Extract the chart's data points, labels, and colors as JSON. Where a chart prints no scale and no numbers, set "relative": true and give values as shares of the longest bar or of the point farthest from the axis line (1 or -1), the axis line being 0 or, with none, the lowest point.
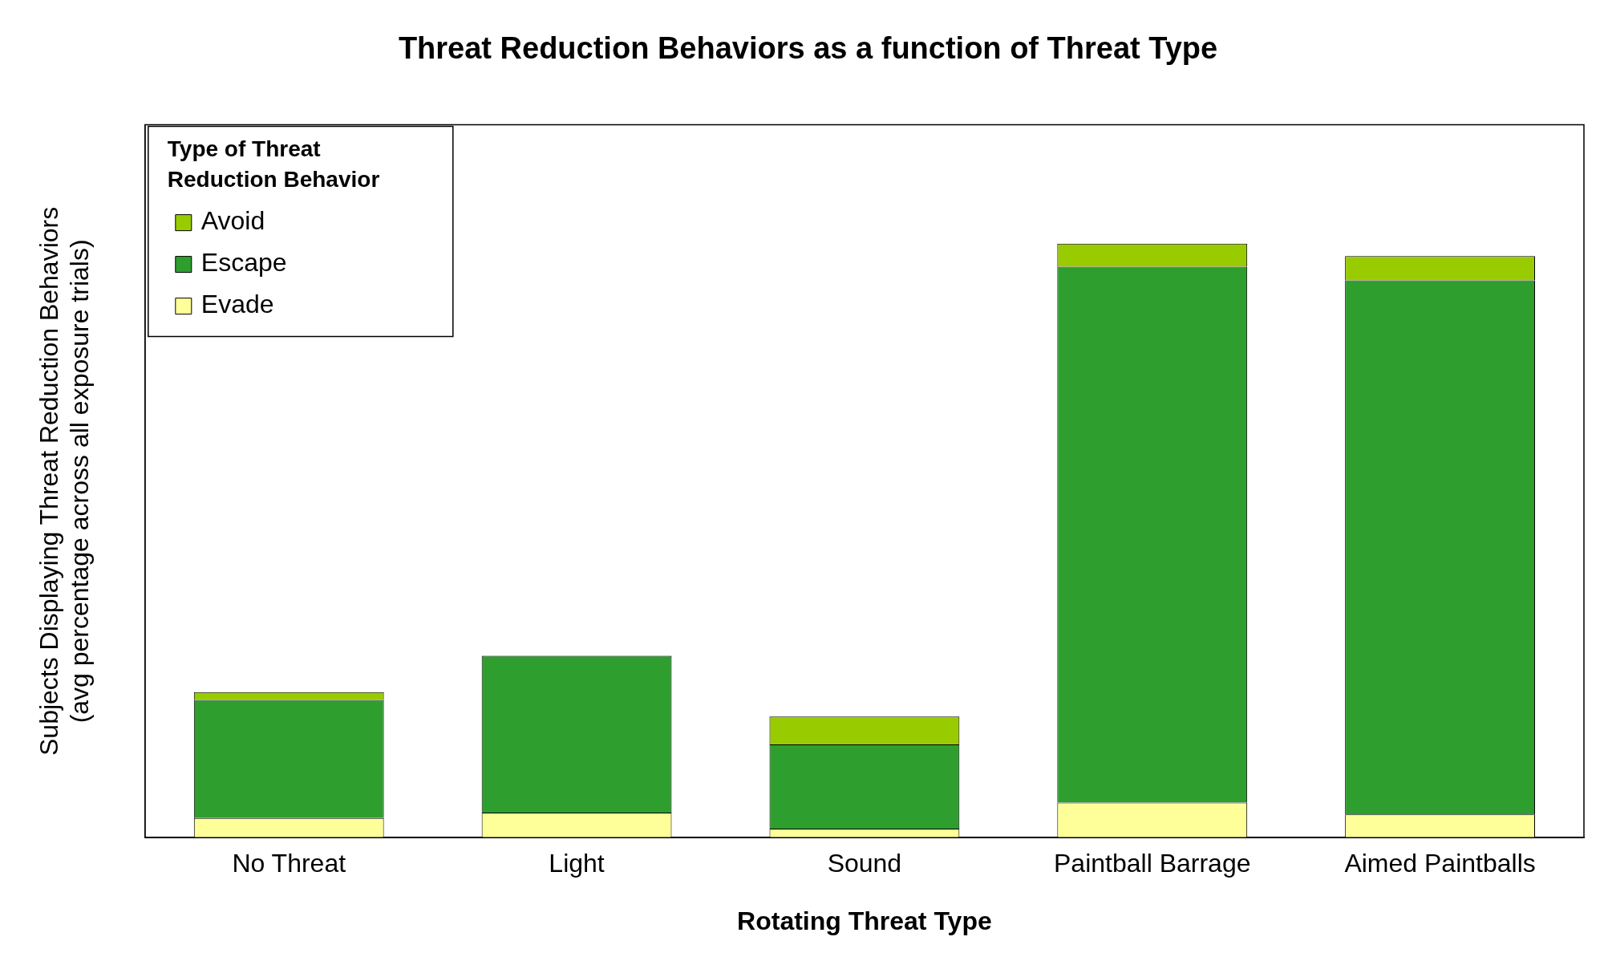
{
  "chart_data": {
    "type": "bar",
    "title": "Threat Reduction Behaviors as a function of Threat Type",
    "xlabel": "Rotating Threat Type",
    "ylabel": "Subjects Displaying Threat Reduction Behaviors\n(avg percentage across all exposure trials)",
    "legend_title": "Type of Threat\nReduction Behavior",
    "categories": [
      "No Threat",
      "Light",
      "Sound",
      "Paintball Barrage",
      "Aimed Paintballs"
    ],
    "stacked": true,
    "relative": true,
    "legend": "top left",
    "grid": false,
    "series": [
      {
        "name": "Evade",
        "color": "#ffff99",
        "values": [
          0.033,
          0.042,
          0.015,
          0.059,
          0.039
        ]
      },
      {
        "name": "Escape",
        "color": "#2e9e2e",
        "values": [
          0.199,
          0.264,
          0.142,
          0.902,
          0.899
        ]
      },
      {
        "name": "Avoid",
        "color": "#99cc00",
        "values": [
          0.013,
          null,
          0.047,
          0.039,
          0.041
        ]
      }
    ]
  }
}
